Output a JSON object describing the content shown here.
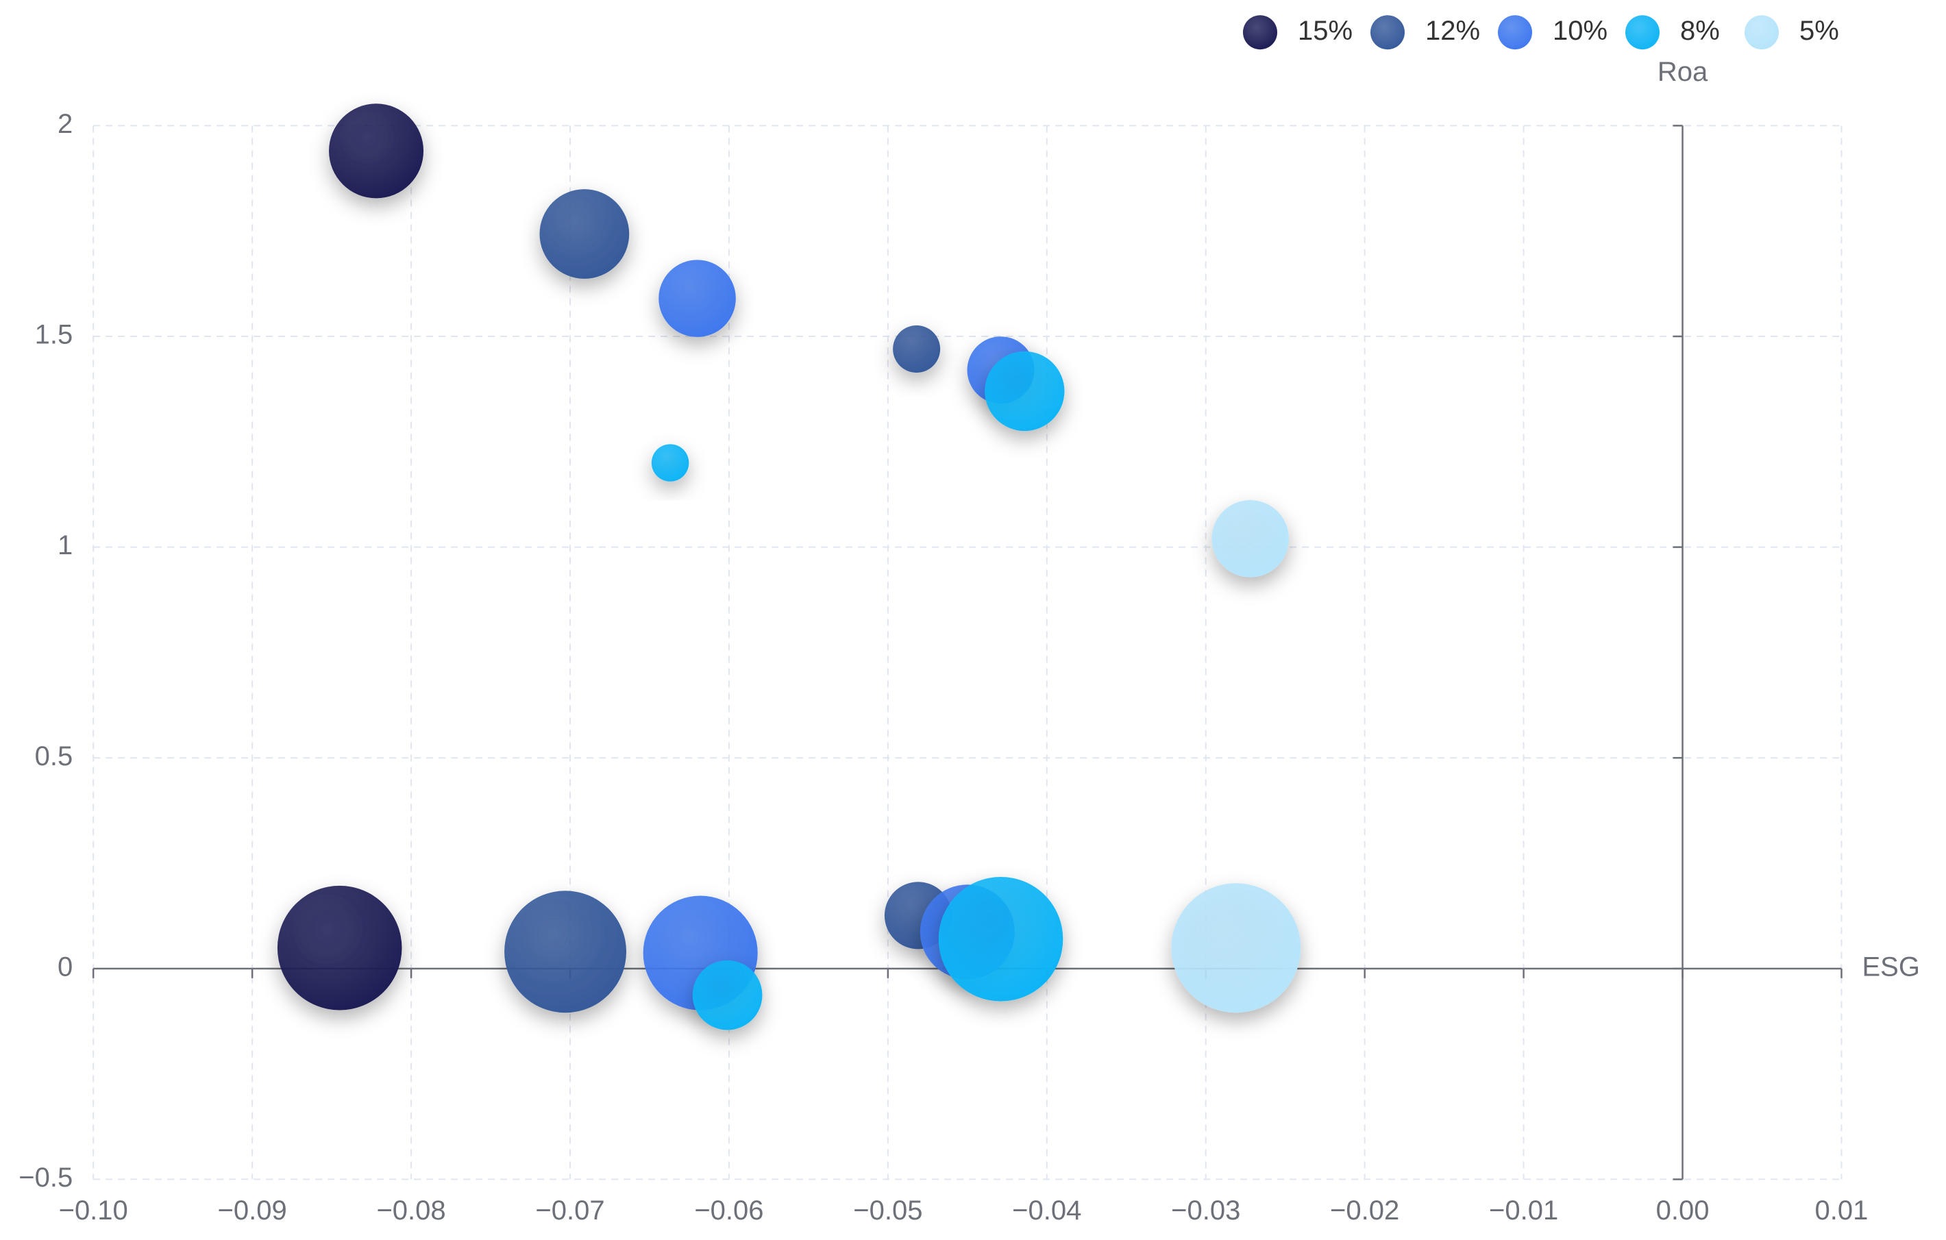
{
  "chart_data": {
    "type": "bubble",
    "x_label": "ESG",
    "y_label": "Roa",
    "xlim": [
      -0.1,
      0.01
    ],
    "xticks": [
      {
        "value": -0.1,
        "label": "−0.10"
      },
      {
        "value": -0.09,
        "label": "−0.09"
      },
      {
        "value": -0.08,
        "label": "−0.08"
      },
      {
        "value": -0.07,
        "label": "−0.07"
      },
      {
        "value": -0.06,
        "label": "−0.06"
      },
      {
        "value": -0.05,
        "label": "−0.05"
      },
      {
        "value": -0.04,
        "label": "−0.04"
      },
      {
        "value": -0.03,
        "label": "−0.03"
      },
      {
        "value": -0.02,
        "label": "−0.02"
      },
      {
        "value": -0.01,
        "label": "−0.01"
      },
      {
        "value": 0,
        "label": "0.00"
      },
      0.01
    ],
    "ylim": [
      -0.5,
      2
    ],
    "yticks": [
      {
        "value": -0.5,
        "label": "−0.5"
      },
      0,
      0.5,
      1,
      1.5,
      2
    ],
    "grid": true,
    "legend": "top-right",
    "series": [
      {
        "name": "15%",
        "color": "#1c1c55",
        "x": [
          -0.0822,
          -0.0845
        ],
        "values": [
          1.94,
          0.049
        ],
        "sizes": [
          38,
          50
        ]
      },
      {
        "name": "12%",
        "color": "#35599a",
        "x": [
          -0.0691,
          -0.0482,
          -0.0703,
          -0.0481
        ],
        "values": [
          1.743,
          1.47,
          0.04,
          0.126
        ],
        "sizes": [
          36,
          19,
          49,
          27
        ]
      },
      {
        "name": "10%",
        "color": "#3f78ee",
        "x": [
          -0.062,
          -0.0429,
          -0.0618,
          -0.045
        ],
        "values": [
          1.59,
          1.42,
          0.037,
          0.087
        ],
        "sizes": [
          31,
          27,
          46,
          38
        ]
      },
      {
        "name": "8%",
        "color": "#10b4f6",
        "x": [
          -0.0637,
          -0.0414,
          -0.0601,
          -0.0429
        ],
        "values": [
          1.2,
          1.37,
          -0.063,
          0.07
        ],
        "sizes": [
          15,
          32,
          28,
          50
        ]
      },
      {
        "name": "5%",
        "color": "#b6e4fb",
        "x": [
          -0.0272,
          -0.0281
        ],
        "values": [
          1.02,
          0.049
        ],
        "sizes": [
          31,
          52
        ]
      }
    ]
  }
}
